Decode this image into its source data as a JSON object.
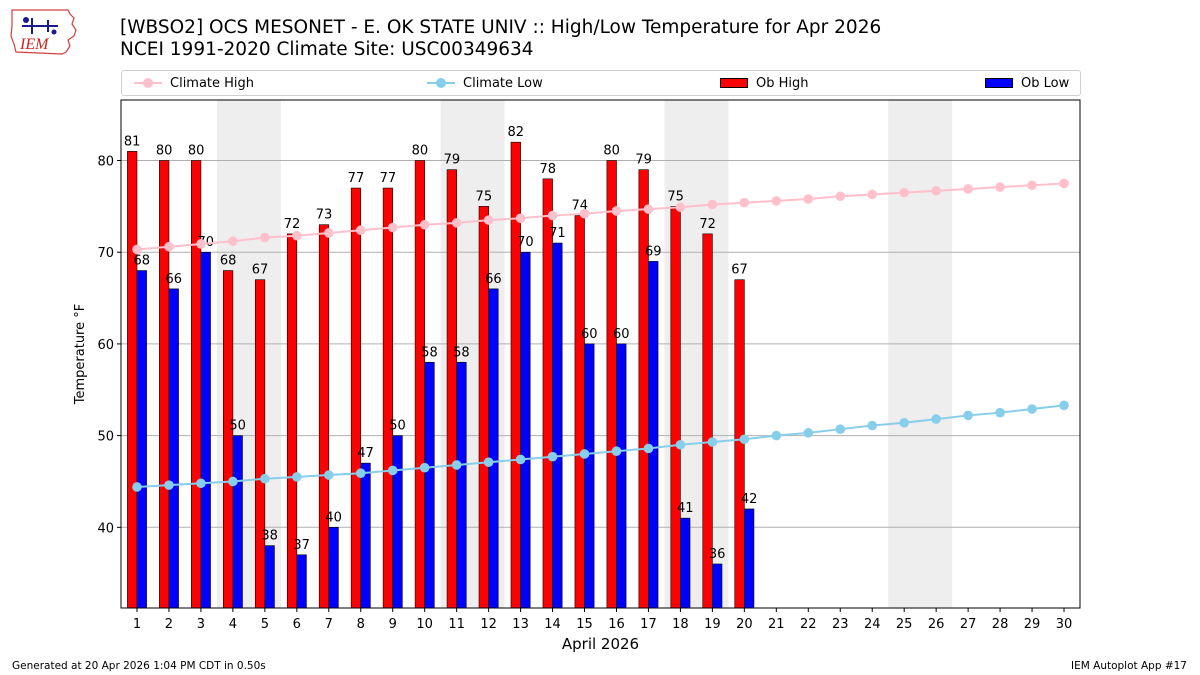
{
  "header": {
    "title_line1": "[WBSO2] OCS MESONET - E. OK STATE UNIV :: High/Low Temperature for Apr 2026",
    "title_line2": "NCEI 1991-2020 Climate Site: USC00349634",
    "logo_text": "IEM"
  },
  "legend": {
    "climate_high": "Climate High",
    "climate_low": "Climate Low",
    "ob_high": "Ob High",
    "ob_low": "Ob Low"
  },
  "footer": {
    "generated": "Generated at 20 Apr 2026 1:04 PM CDT in 0.50s",
    "app": "IEM Autoplot App #17"
  },
  "colors": {
    "ob_high": "#ff0000",
    "ob_low": "#0000ff",
    "climate_high": "#ffc0cb",
    "climate_low": "#87ceeb",
    "weekend_shade": "#eeeeee",
    "grid": "#b0b0b0"
  },
  "chart_data": {
    "type": "bar",
    "xlabel": "April 2026",
    "ylabel": "Temperature °F",
    "ylim": [
      31.2,
      86.6
    ],
    "yticks": [
      40,
      50,
      60,
      70,
      80
    ],
    "grid": "horizontal",
    "legend_placement": "top",
    "days": [
      1,
      2,
      3,
      4,
      5,
      6,
      7,
      8,
      9,
      10,
      11,
      12,
      13,
      14,
      15,
      16,
      17,
      18,
      19,
      20,
      21,
      22,
      23,
      24,
      25,
      26,
      27,
      28,
      29,
      30
    ],
    "weekend_shaded_days": [
      [
        4,
        5
      ],
      [
        11,
        12
      ],
      [
        18,
        19
      ],
      [
        25,
        26
      ]
    ],
    "series": [
      {
        "name": "Ob High",
        "kind": "bar",
        "values": [
          81,
          80,
          80,
          68,
          67,
          72,
          73,
          77,
          77,
          80,
          79,
          75,
          82,
          78,
          74,
          80,
          79,
          75,
          72,
          67
        ]
      },
      {
        "name": "Ob Low",
        "kind": "bar",
        "values": [
          68,
          66,
          70,
          50,
          38,
          37,
          40,
          47,
          50,
          58,
          58,
          66,
          70,
          71,
          60,
          60,
          69,
          41,
          36,
          42
        ]
      },
      {
        "name": "Climate High",
        "kind": "line",
        "values": [
          70.3,
          70.6,
          70.9,
          71.2,
          71.6,
          71.8,
          72.1,
          72.4,
          72.7,
          73.0,
          73.2,
          73.5,
          73.7,
          74.0,
          74.2,
          74.5,
          74.7,
          74.9,
          75.2,
          75.4,
          75.6,
          75.8,
          76.1,
          76.3,
          76.5,
          76.7,
          76.9,
          77.1,
          77.3,
          77.5
        ]
      },
      {
        "name": "Climate Low",
        "kind": "line",
        "values": [
          44.4,
          44.6,
          44.8,
          45.0,
          45.3,
          45.5,
          45.7,
          45.9,
          46.2,
          46.5,
          46.8,
          47.1,
          47.4,
          47.7,
          48.0,
          48.3,
          48.6,
          49.0,
          49.3,
          49.6,
          50.0,
          50.3,
          50.7,
          51.1,
          51.4,
          51.8,
          52.2,
          52.5,
          52.9,
          53.3
        ]
      }
    ]
  }
}
